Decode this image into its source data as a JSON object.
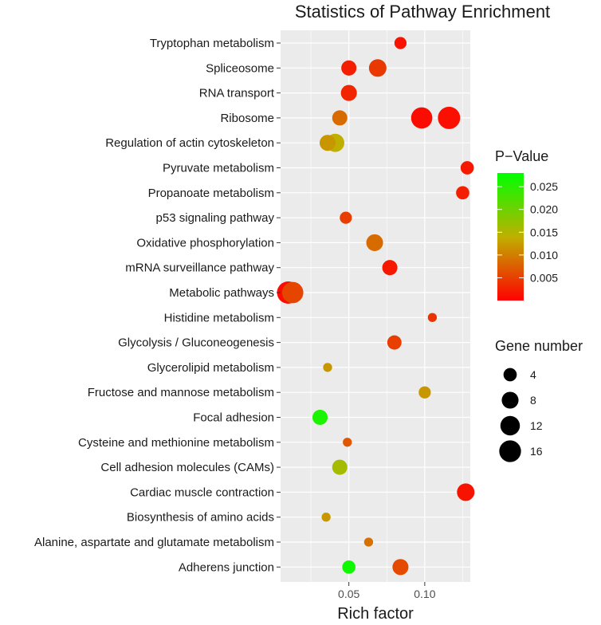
{
  "chart_data": {
    "type": "scatter",
    "title": "Statistics of Pathway Enrichment",
    "xlabel": "Rich factor",
    "ylabel": "",
    "xlim": [
      0.005,
      0.13
    ],
    "x_ticks": [
      {
        "value": 0.05,
        "label": "0.05"
      },
      {
        "value": 0.1,
        "label": "0.10"
      }
    ],
    "grid": true,
    "categories": [
      "Tryptophan metabolism",
      "Spliceosome",
      "RNA transport",
      "Ribosome",
      "Regulation of actin cytoskeleton",
      "Pyruvate metabolism",
      "Propanoate metabolism",
      "p53 signaling pathway",
      "Oxidative phosphorylation",
      "mRNA surveillance pathway",
      "Metabolic pathways",
      "Histidine metabolism",
      "Glycolysis / Gluconeogenesis",
      "Glycerolipid metabolism",
      "Fructose and mannose metabolism",
      "Focal adhesion",
      "Cysteine and methionine metabolism",
      "Cell adhesion molecules (CAMs)",
      "Cardiac muscle contraction",
      "Biosynthesis of amino acids",
      "Alanine, aspartate and glutamate metabolism",
      "Adherens junction"
    ],
    "points": [
      {
        "pathway": "Tryptophan metabolism",
        "x": 0.084,
        "pvalue": 0.0015,
        "genes": 3
      },
      {
        "pathway": "Spliceosome",
        "x": 0.05,
        "pvalue": 0.0025,
        "genes": 6
      },
      {
        "pathway": "Spliceosome",
        "x": 0.069,
        "pvalue": 0.0045,
        "genes": 9
      },
      {
        "pathway": "RNA transport",
        "x": 0.05,
        "pvalue": 0.003,
        "genes": 7
      },
      {
        "pathway": "Ribosome",
        "x": 0.044,
        "pvalue": 0.0085,
        "genes": 6
      },
      {
        "pathway": "Ribosome",
        "x": 0.098,
        "pvalue": 0.001,
        "genes": 15
      },
      {
        "pathway": "Ribosome",
        "x": 0.116,
        "pvalue": 0.0012,
        "genes": 17
      },
      {
        "pathway": "Regulation of actin cytoskeleton",
        "x": 0.036,
        "pvalue": 0.012,
        "genes": 7
      },
      {
        "pathway": "Regulation of actin cytoskeleton",
        "x": 0.041,
        "pvalue": 0.014,
        "genes": 10
      },
      {
        "pathway": "Pyruvate metabolism",
        "x": 0.128,
        "pvalue": 0.002,
        "genes": 4
      },
      {
        "pathway": "Propanoate metabolism",
        "x": 0.125,
        "pvalue": 0.0025,
        "genes": 4
      },
      {
        "pathway": "p53 signaling pathway",
        "x": 0.048,
        "pvalue": 0.005,
        "genes": 3
      },
      {
        "pathway": "Oxidative phosphorylation",
        "x": 0.067,
        "pvalue": 0.0085,
        "genes": 8
      },
      {
        "pathway": "mRNA surveillance pathway",
        "x": 0.077,
        "pvalue": 0.002,
        "genes": 6
      },
      {
        "pathway": "Metabolic pathways",
        "x": 0.01,
        "pvalue": 0.001,
        "genes": 17
      },
      {
        "pathway": "Metabolic pathways",
        "x": 0.013,
        "pvalue": 0.0055,
        "genes": 15
      },
      {
        "pathway": "Histidine metabolism",
        "x": 0.105,
        "pvalue": 0.004,
        "genes": 1
      },
      {
        "pathway": "Glycolysis / Gluconeogenesis",
        "x": 0.08,
        "pvalue": 0.005,
        "genes": 5
      },
      {
        "pathway": "Glycerolipid metabolism",
        "x": 0.036,
        "pvalue": 0.012,
        "genes": 1
      },
      {
        "pathway": "Fructose and mannose metabolism",
        "x": 0.1,
        "pvalue": 0.012,
        "genes": 3
      },
      {
        "pathway": "Focal adhesion",
        "x": 0.031,
        "pvalue": 0.026,
        "genes": 6
      },
      {
        "pathway": "Cysteine and methionine metabolism",
        "x": 0.049,
        "pvalue": 0.007,
        "genes": 1
      },
      {
        "pathway": "Cell adhesion molecules (CAMs)",
        "x": 0.044,
        "pvalue": 0.016,
        "genes": 6
      },
      {
        "pathway": "Cardiac muscle contraction",
        "x": 0.127,
        "pvalue": 0.0015,
        "genes": 9
      },
      {
        "pathway": "Biosynthesis of amino acids",
        "x": 0.035,
        "pvalue": 0.012,
        "genes": 1
      },
      {
        "pathway": "Alanine, aspartate and glutamate metabolism",
        "x": 0.063,
        "pvalue": 0.009,
        "genes": 1
      },
      {
        "pathway": "Adherens junction",
        "x": 0.05,
        "pvalue": 0.027,
        "genes": 4
      },
      {
        "pathway": "Adherens junction",
        "x": 0.084,
        "pvalue": 0.006,
        "genes": 7
      }
    ],
    "color_legend": {
      "title": "P−Value",
      "min": 0.0,
      "max": 0.028,
      "ticks": [
        {
          "value": 0.025,
          "label": "0.025"
        },
        {
          "value": 0.02,
          "label": "0.020"
        },
        {
          "value": 0.015,
          "label": "0.015"
        },
        {
          "value": 0.01,
          "label": "0.010"
        },
        {
          "value": 0.005,
          "label": "0.005"
        }
      ],
      "low_color": "#ff0000",
      "high_color": "#00ff00"
    },
    "size_legend": {
      "title": "Gene number",
      "entries": [
        {
          "value": 4,
          "label": "4"
        },
        {
          "value": 8,
          "label": "8"
        },
        {
          "value": 12,
          "label": "12"
        },
        {
          "value": 16,
          "label": "16"
        }
      ]
    },
    "colors": {
      "panel_bg": "#ebebeb",
      "grid": "#ffffff",
      "text": "#1a1a1a",
      "tick_text": "#4d4d4d"
    }
  }
}
